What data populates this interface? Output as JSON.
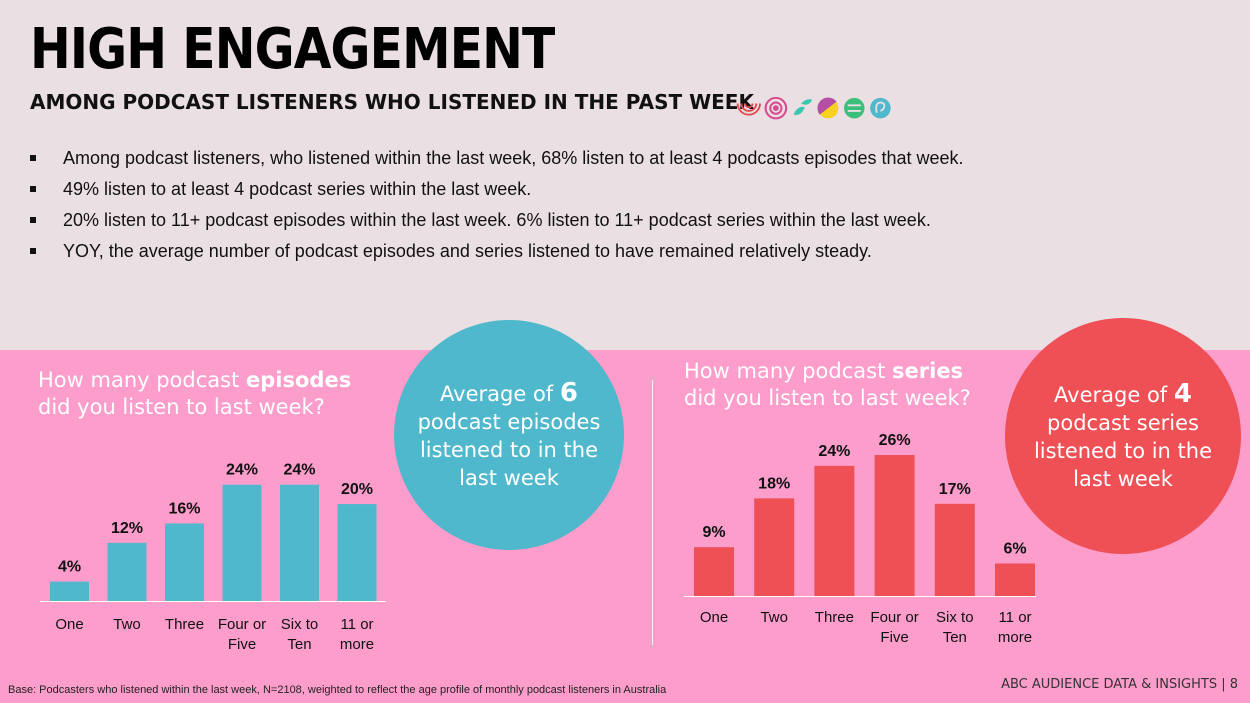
{
  "header": {
    "title": "HIGH ENGAGEMENT",
    "subtitle": "AMONG PODCAST LISTENERS WHO LISTENED IN THE PAST WEEK"
  },
  "bullets": [
    "Among podcast listeners, who listened within the last week, 68% listen to at least 4 podcasts episodes that week.",
    "49% listen to at least 4 podcast series within the last week.",
    "20% listen to 11+ podcast episodes within the last week. 6% listen to 11+ podcast series within the last week.",
    "YOY, the average number of podcast episodes and series listened to have remained relatively steady."
  ],
  "logo_icons": [
    "abc-listen-icon",
    "podcast-icon",
    "leaf-icon",
    "split-circle-icon",
    "equal-circle-icon",
    "ear-icon"
  ],
  "episodes_panel": {
    "question_part1": "How many podcast ",
    "question_bold": "episodes",
    "question_part2": "did you listen to last week?",
    "bubble_prefix": "Average of ",
    "bubble_value": "6",
    "bubble_line2": "podcast episodes",
    "bubble_line3": "listened to in the",
    "bubble_line4": "last week",
    "color": "#4fb8cc"
  },
  "series_panel": {
    "question_part1": "How many podcast ",
    "question_bold": "series",
    "question_part2": "did you listen to last week?",
    "bubble_prefix": "Average of ",
    "bubble_value": "4",
    "bubble_line2": "podcast series",
    "bubble_line3": "listened to in the",
    "bubble_line4": "last week",
    "color": "#ee5055"
  },
  "chart_data": [
    {
      "type": "bar",
      "categories": [
        [
          "One"
        ],
        [
          "Two"
        ],
        [
          "Three"
        ],
        [
          "Four or",
          "Five"
        ],
        [
          "Six to",
          "Ten"
        ],
        [
          "11 or",
          "more"
        ]
      ],
      "values": [
        4,
        12,
        16,
        24,
        24,
        20
      ],
      "value_labels": [
        "4%",
        "12%",
        "16%",
        "24%",
        "24%",
        "20%"
      ],
      "unit": "%",
      "ylim": [
        0,
        26
      ],
      "grid": false,
      "color": "#4fb8cc"
    },
    {
      "type": "bar",
      "categories": [
        [
          "One"
        ],
        [
          "Two"
        ],
        [
          "Three"
        ],
        [
          "Four or",
          "Five"
        ],
        [
          "Six to",
          "Ten"
        ],
        [
          "11 or",
          "more"
        ]
      ],
      "values": [
        9,
        18,
        24,
        26,
        17,
        6
      ],
      "value_labels": [
        "9%",
        "18%",
        "24%",
        "26%",
        "17%",
        "6%"
      ],
      "unit": "%",
      "ylim": [
        0,
        26
      ],
      "grid": false,
      "color": "#ee5055"
    }
  ],
  "footer": {
    "base_note": "Base: Podcasters who listened within the last week, N=2108, weighted to reflect the age profile of monthly podcast listeners in Australia",
    "source": "ABC AUDIENCE DATA & INSIGHTS | 8"
  }
}
